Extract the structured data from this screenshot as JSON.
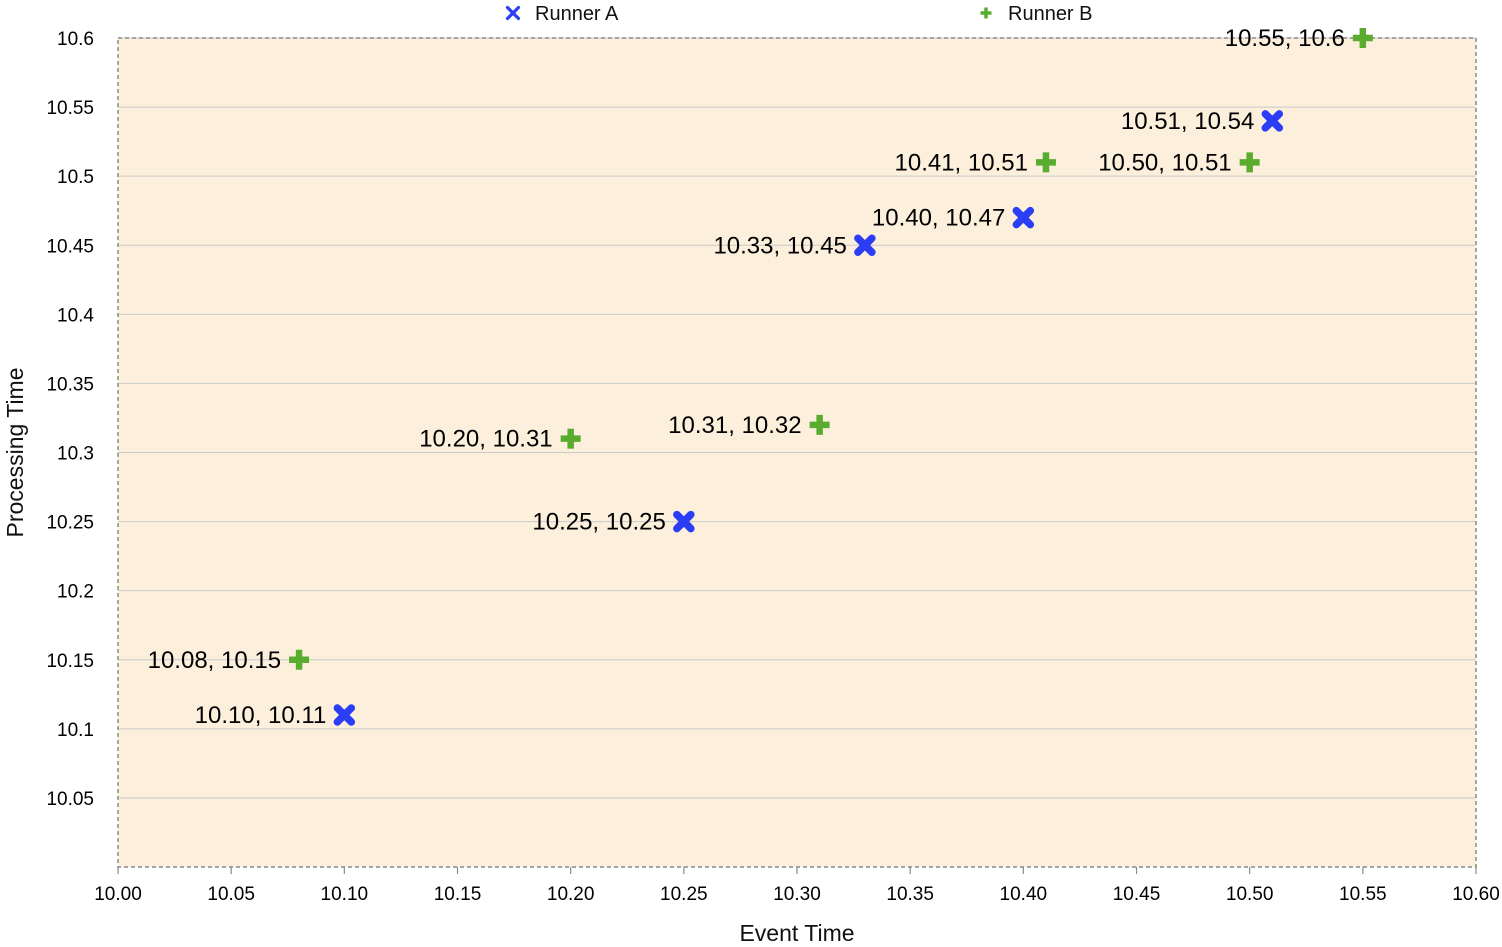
{
  "chart_data": {
    "type": "scatter",
    "xlabel": "Event Time",
    "ylabel": "Processing Time",
    "xlim": [
      10.0,
      10.6
    ],
    "ylim": [
      10.0,
      10.6
    ],
    "x_ticks": [
      "10.00",
      "10.05",
      "10.10",
      "10.15",
      "10.20",
      "10.25",
      "10.30",
      "10.35",
      "10.40",
      "10.45",
      "10.50",
      "10.55",
      "10.60"
    ],
    "x_tick_values": [
      10.0,
      10.05,
      10.1,
      10.15,
      10.2,
      10.25,
      10.3,
      10.35,
      10.4,
      10.45,
      10.5,
      10.55,
      10.6
    ],
    "y_ticks": [
      "10.05",
      "10.1",
      "10.15",
      "10.2",
      "10.25",
      "10.3",
      "10.35",
      "10.4",
      "10.45",
      "10.5",
      "10.55",
      "10.6"
    ],
    "y_tick_values": [
      10.05,
      10.1,
      10.15,
      10.2,
      10.25,
      10.3,
      10.35,
      10.4,
      10.45,
      10.5,
      10.55,
      10.6
    ],
    "grid": "horizontal",
    "legend_position": "top",
    "plot_background": "#fcf0dd",
    "series": [
      {
        "name": "Runner A",
        "marker": "x",
        "color": "#2b3df5",
        "points": [
          {
            "x": 10.1,
            "y": 10.11,
            "label": "10.10, 10.11"
          },
          {
            "x": 10.25,
            "y": 10.25,
            "label": "10.25, 10.25"
          },
          {
            "x": 10.33,
            "y": 10.45,
            "label": "10.33, 10.45"
          },
          {
            "x": 10.4,
            "y": 10.47,
            "label": "10.40, 10.47"
          },
          {
            "x": 10.51,
            "y": 10.54,
            "label": "10.51, 10.54"
          }
        ]
      },
      {
        "name": "Runner B",
        "marker": "plus",
        "color": "#5aac2e",
        "points": [
          {
            "x": 10.08,
            "y": 10.15,
            "label": "10.08, 10.15"
          },
          {
            "x": 10.2,
            "y": 10.31,
            "label": "10.20, 10.31"
          },
          {
            "x": 10.31,
            "y": 10.32,
            "label": "10.31, 10.32"
          },
          {
            "x": 10.41,
            "y": 10.51,
            "label": "10.41, 10.51"
          },
          {
            "x": 10.5,
            "y": 10.51,
            "label": "10.50, 10.51"
          },
          {
            "x": 10.55,
            "y": 10.6,
            "label": "10.55, 10.6"
          }
        ]
      }
    ]
  }
}
